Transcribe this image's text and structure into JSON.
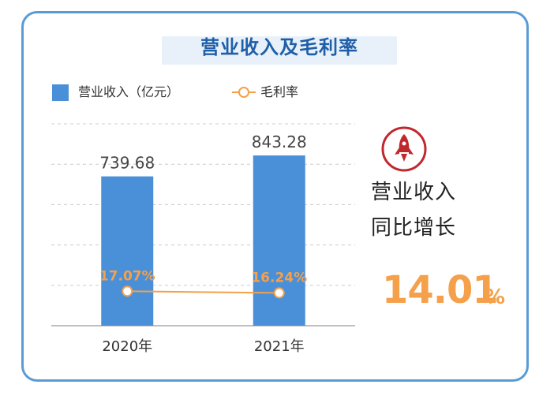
{
  "chart_data": {
    "type": "bar",
    "title": "营业收入及毛利率",
    "categories": [
      "2020年",
      "2021年"
    ],
    "series": [
      {
        "name": "营业收入（亿元）",
        "type": "bar",
        "values": [
          739.68,
          843.28
        ],
        "labels": [
          "739.68",
          "843.28"
        ],
        "color": "#4a90d9"
      },
      {
        "name": "毛利率",
        "type": "line",
        "values": [
          17.07,
          16.24
        ],
        "labels": [
          "17.07%",
          "16.24%"
        ],
        "color": "#f5a04a"
      }
    ],
    "ylim": [
      0,
      1000
    ],
    "line_ylim": [
      0,
      100
    ],
    "grid": true,
    "legend_position": "top-left"
  },
  "side_panel": {
    "icon": "rocket-icon",
    "label_line1": "营业收入",
    "label_line2": "同比增长",
    "growth_value": "14.01",
    "growth_unit": "%",
    "accent_color": "#f5a04a",
    "icon_color": "#c0282e"
  }
}
